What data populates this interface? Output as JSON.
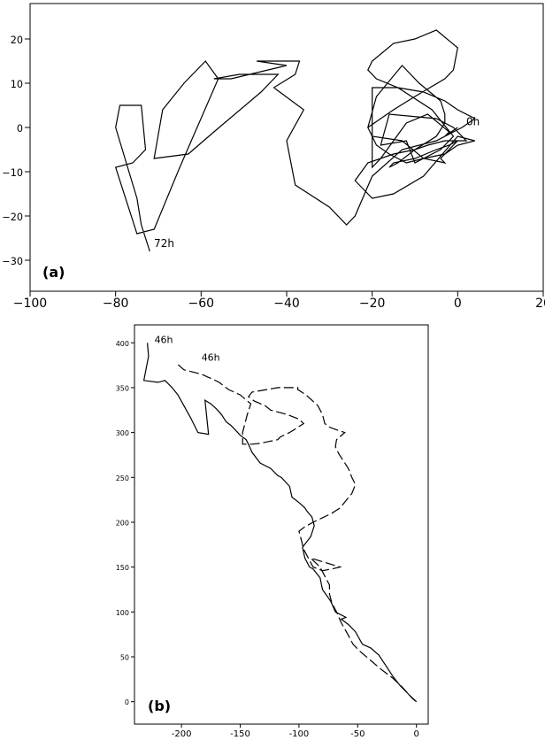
{
  "chart_data": [
    {
      "type": "line",
      "panel_label": "(a)",
      "xlim": [
        -100,
        20
      ],
      "ylim": [
        -37,
        28
      ],
      "x_ticks": [
        -100,
        -80,
        -60,
        -40,
        -20,
        0,
        20
      ],
      "x_tick_labels": [
        "−100",
        "−80",
        "−60",
        "−40",
        "−20",
        "0",
        "20"
      ],
      "y_ticks": [
        20,
        10,
        0,
        -10,
        -20,
        -30
      ],
      "y_tick_labels": [
        "20",
        "10",
        "0",
        "−10",
        "−20",
        "−30"
      ],
      "grid": false,
      "annotations": [
        {
          "text": "0h",
          "x": 2,
          "y": 0.5
        },
        {
          "text": "72h",
          "x": -71,
          "y": -27
        }
      ],
      "series": [
        {
          "style": "solid",
          "x": [
            0,
            -3,
            -2,
            -7,
            -12,
            -15,
            -18,
            -20,
            -20,
            -14,
            -6,
            -1,
            -4,
            -8,
            -10,
            -12,
            -18,
            -16,
            -5,
            -1,
            2,
            -3,
            -7,
            -10,
            -14,
            -16,
            -15,
            -10,
            -5,
            -2,
            0,
            -4,
            -3,
            -8,
            -13,
            -20,
            -21,
            -19,
            -13,
            -9,
            -4,
            -3,
            -3,
            -5,
            -10,
            -15,
            -21,
            -24,
            -20,
            -15,
            -8,
            0,
            4,
            0,
            -3,
            -8,
            -12,
            -16,
            -19,
            -21,
            -15,
            -10,
            -3,
            -1,
            0,
            -5,
            -10,
            -15,
            -20,
            -21,
            -19,
            -14,
            -8,
            -3,
            0,
            4,
            1,
            -5,
            -13,
            -20,
            -24,
            -26,
            -30,
            -38,
            -40,
            -36,
            -43,
            -38,
            -37,
            -47,
            -40,
            -53,
            -57,
            -51,
            -42,
            -46,
            -57,
            -63,
            -71,
            -69,
            -64,
            -59,
            -56,
            -65,
            -71,
            -75,
            -80,
            -76,
            -73,
            -74,
            -79,
            -80,
            -75,
            -74,
            -72
          ],
          "y": [
            0,
            -2,
            -1,
            3,
            1,
            -3,
            -7,
            -9,
            9,
            9,
            4,
            -2,
            -5,
            -7,
            -8,
            -3,
            -4,
            3,
            2,
            0,
            -3,
            -3,
            -4,
            -5,
            -8,
            -9,
            -8,
            -7,
            -5,
            -4,
            -3,
            -7,
            -8,
            -7,
            -3,
            -2,
            0,
            7,
            14,
            10,
            6,
            3,
            1,
            -2,
            -5,
            -6,
            -8,
            -12,
            -16,
            -15,
            -11,
            -2,
            -3,
            -4,
            -6,
            -7,
            -8,
            -6,
            -4,
            0,
            4,
            7,
            11,
            13,
            18,
            22,
            20,
            19,
            15,
            13,
            11,
            9,
            8,
            6,
            4,
            2,
            0,
            -3,
            -5,
            -11,
            -20,
            -22,
            -18,
            -13,
            -3,
            4,
            9,
            12,
            15,
            15,
            14,
            11,
            11,
            12,
            12,
            8,
            -1,
            -6,
            -7,
            4,
            10,
            15,
            11,
            -9,
            -23,
            -24,
            -9,
            -8,
            -5,
            5,
            5,
            0,
            -16,
            -22,
            -28
          ]
        }
      ]
    },
    {
      "type": "line",
      "panel_label": "(b)",
      "xlim": [
        -240,
        10
      ],
      "ylim": [
        -25,
        420
      ],
      "x_ticks": [
        -200,
        -150,
        -100,
        -50,
        0
      ],
      "x_tick_labels": [
        "-200",
        "-150",
        "-100",
        "-50",
        "0"
      ],
      "y_ticks": [
        400,
        350,
        300,
        250,
        200,
        150,
        100,
        50,
        0
      ],
      "y_tick_labels": [
        "400",
        "350",
        "300",
        "250",
        "200",
        "150",
        "100",
        "50",
        "0"
      ],
      "grid": false,
      "annotations": [
        {
          "text": "46h",
          "x": -223,
          "y": 400
        },
        {
          "text": "46h",
          "x": -183,
          "y": 380
        }
      ],
      "series": [
        {
          "style": "solid",
          "x": [
            0,
            -3,
            -8,
            -14,
            -20,
            -26,
            -32,
            -39,
            -46,
            -52,
            -58,
            -64,
            -60,
            -69,
            -73,
            -80,
            -82,
            -88,
            -91,
            -95,
            -97,
            -90,
            -87,
            -89,
            -93,
            -95,
            -100,
            -106,
            -108,
            -115,
            -118,
            -124,
            -133,
            -140,
            -143,
            -145,
            -150,
            -155,
            -158,
            -162,
            -166,
            -170,
            -175,
            -180,
            -177,
            -186,
            -192,
            -198,
            -203,
            -208,
            -214,
            -220,
            -232,
            -228,
            -229
          ],
          "y": [
            0,
            3,
            10,
            18,
            28,
            40,
            52,
            60,
            64,
            78,
            86,
            92,
            94,
            100,
            112,
            125,
            138,
            148,
            150,
            160,
            172,
            184,
            196,
            206,
            212,
            216,
            222,
            228,
            240,
            250,
            252,
            260,
            266,
            278,
            287,
            292,
            297,
            304,
            308,
            312,
            320,
            326,
            332,
            336,
            298,
            300,
            316,
            330,
            342,
            350,
            358,
            356,
            358,
            385,
            400
          ]
        },
        {
          "style": "dashed",
          "x": [
            0,
            -5,
            -12,
            -20,
            -30,
            -39,
            -48,
            -54,
            -58,
            -64,
            -68,
            -72,
            -74,
            -74,
            -78,
            -82,
            -90,
            -70,
            -65,
            -72,
            -80,
            -88,
            -92,
            -96,
            -98,
            -100,
            -95,
            -88,
            -80,
            -72,
            -65,
            -60,
            -55,
            -52,
            -55,
            -58,
            -62,
            -66,
            -69,
            -68,
            -61,
            -68,
            -74,
            -78,
            -80,
            -84,
            -94,
            -101,
            -101,
            -118,
            -140,
            -143,
            -138,
            -129,
            -124,
            -110,
            -100,
            -96,
            -102,
            -108,
            -116,
            -118,
            -126,
            -133,
            -140,
            -148,
            -148,
            -144,
            -141,
            -150,
            -160,
            -164,
            -168,
            -174,
            -178,
            -181,
            -186,
            -192,
            -198,
            -203
          ],
          "y": [
            0,
            6,
            16,
            26,
            36,
            46,
            56,
            64,
            74,
            88,
            100,
            110,
            120,
            130,
            140,
            150,
            160,
            152,
            150,
            148,
            146,
            150,
            160,
            170,
            180,
            190,
            195,
            200,
            205,
            210,
            216,
            224,
            232,
            242,
            250,
            260,
            268,
            276,
            284,
            292,
            300,
            303,
            306,
            310,
            320,
            330,
            342,
            348,
            350,
            350,
            345,
            340,
            335,
            330,
            325,
            320,
            315,
            310,
            305,
            300,
            295,
            292,
            290,
            288,
            287,
            287,
            300,
            320,
            332,
            342,
            348,
            352,
            356,
            360,
            362,
            364,
            366,
            368,
            370,
            376
          ]
        }
      ]
    }
  ]
}
